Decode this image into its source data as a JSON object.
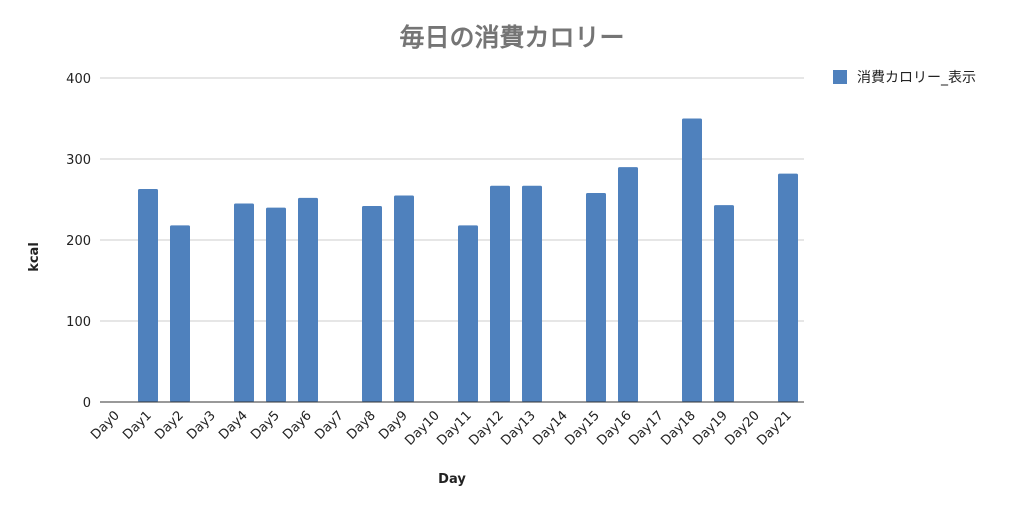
{
  "chart_data": {
    "type": "bar",
    "title": "毎日の消費カロリー",
    "xlabel": "Day",
    "ylabel": "kcal",
    "categories": [
      "Day0",
      "Day1",
      "Day2",
      "Day3",
      "Day4",
      "Day5",
      "Day6",
      "Day7",
      "Day8",
      "Day9",
      "Day10",
      "Day11",
      "Day12",
      "Day13",
      "Day14",
      "Day15",
      "Day16",
      "Day17",
      "Day18",
      "Day19",
      "Day20",
      "Day21"
    ],
    "series": [
      {
        "name": "消費カロリー_表示",
        "color": "#4f81bd",
        "values": [
          null,
          263,
          218,
          null,
          245,
          240,
          252,
          null,
          242,
          255,
          null,
          218,
          267,
          267,
          null,
          258,
          290,
          null,
          350,
          243,
          null,
          282
        ]
      }
    ],
    "ylim": [
      0,
      400
    ],
    "yticks": [
      0,
      100,
      200,
      300,
      400
    ],
    "grid": true,
    "legend_position": "right-top"
  }
}
